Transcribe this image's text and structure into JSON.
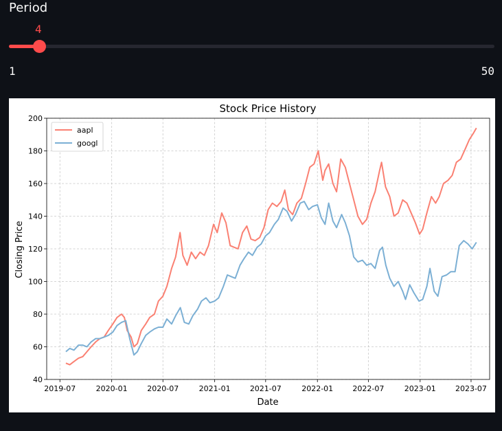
{
  "slider": {
    "label": "Period",
    "value": 4,
    "value_text": "4",
    "min": 1,
    "max": 50,
    "min_text": "1",
    "max_text": "50",
    "accent_color": "#ff4b4b"
  },
  "chart_data": {
    "type": "line",
    "title": "Stock Price History",
    "xlabel": "Date",
    "ylabel": "Closing Price",
    "ylim": [
      40,
      200
    ],
    "yticks": [
      40,
      60,
      80,
      100,
      120,
      140,
      160,
      180,
      200
    ],
    "xticks": [
      "2019-07",
      "2020-01",
      "2020-07",
      "2021-01",
      "2021-07",
      "2022-01",
      "2022-07",
      "2023-01",
      "2023-07"
    ],
    "grid": true,
    "legend": "top-left",
    "series": [
      {
        "name": "aapl",
        "color": "#fa8072",
        "points": [
          [
            "2019-07-22",
            50
          ],
          [
            "2019-08-05",
            49
          ],
          [
            "2019-08-20",
            51
          ],
          [
            "2019-09-05",
            53
          ],
          [
            "2019-09-20",
            54
          ],
          [
            "2019-10-05",
            57
          ],
          [
            "2019-10-20",
            60
          ],
          [
            "2019-11-05",
            63
          ],
          [
            "2019-11-20",
            65
          ],
          [
            "2019-12-05",
            66
          ],
          [
            "2019-12-20",
            70
          ],
          [
            "2020-01-05",
            74
          ],
          [
            "2020-01-20",
            78
          ],
          [
            "2020-02-05",
            80
          ],
          [
            "2020-02-15",
            78
          ],
          [
            "2020-02-25",
            70
          ],
          [
            "2020-03-10",
            66
          ],
          [
            "2020-03-20",
            60
          ],
          [
            "2020-04-01",
            62
          ],
          [
            "2020-04-15",
            70
          ],
          [
            "2020-05-01",
            74
          ],
          [
            "2020-05-15",
            78
          ],
          [
            "2020-06-01",
            80
          ],
          [
            "2020-06-15",
            88
          ],
          [
            "2020-07-01",
            91
          ],
          [
            "2020-07-15",
            97
          ],
          [
            "2020-08-01",
            108
          ],
          [
            "2020-08-15",
            115
          ],
          [
            "2020-08-31",
            130
          ],
          [
            "2020-09-10",
            116
          ],
          [
            "2020-09-25",
            110
          ],
          [
            "2020-10-10",
            118
          ],
          [
            "2020-10-25",
            114
          ],
          [
            "2020-11-10",
            118
          ],
          [
            "2020-11-25",
            116
          ],
          [
            "2020-12-10",
            122
          ],
          [
            "2020-12-28",
            135
          ],
          [
            "2021-01-10",
            130
          ],
          [
            "2021-01-26",
            142
          ],
          [
            "2021-02-10",
            136
          ],
          [
            "2021-02-25",
            122
          ],
          [
            "2021-03-10",
            121
          ],
          [
            "2021-03-25",
            120
          ],
          [
            "2021-04-10",
            130
          ],
          [
            "2021-04-25",
            134
          ],
          [
            "2021-05-10",
            126
          ],
          [
            "2021-05-25",
            125
          ],
          [
            "2021-06-10",
            127
          ],
          [
            "2021-06-25",
            133
          ],
          [
            "2021-07-10",
            144
          ],
          [
            "2021-07-25",
            148
          ],
          [
            "2021-08-10",
            146
          ],
          [
            "2021-08-25",
            149
          ],
          [
            "2021-09-07",
            156
          ],
          [
            "2021-09-20",
            144
          ],
          [
            "2021-10-05",
            141
          ],
          [
            "2021-10-20",
            148
          ],
          [
            "2021-11-05",
            151
          ],
          [
            "2021-11-20",
            160
          ],
          [
            "2021-12-05",
            170
          ],
          [
            "2021-12-20",
            172
          ],
          [
            "2022-01-04",
            180
          ],
          [
            "2022-01-20",
            162
          ],
          [
            "2022-01-28",
            168
          ],
          [
            "2022-02-10",
            172
          ],
          [
            "2022-02-25",
            160
          ],
          [
            "2022-03-10",
            155
          ],
          [
            "2022-03-25",
            175
          ],
          [
            "2022-04-10",
            170
          ],
          [
            "2022-04-25",
            160
          ],
          [
            "2022-05-10",
            150
          ],
          [
            "2022-05-25",
            140
          ],
          [
            "2022-06-10",
            135
          ],
          [
            "2022-06-25",
            138
          ],
          [
            "2022-07-10",
            148
          ],
          [
            "2022-07-25",
            155
          ],
          [
            "2022-08-10",
            168
          ],
          [
            "2022-08-17",
            173
          ],
          [
            "2022-08-31",
            158
          ],
          [
            "2022-09-15",
            152
          ],
          [
            "2022-09-30",
            140
          ],
          [
            "2022-10-15",
            142
          ],
          [
            "2022-10-31",
            150
          ],
          [
            "2022-11-15",
            148
          ],
          [
            "2022-11-30",
            142
          ],
          [
            "2022-12-15",
            136
          ],
          [
            "2022-12-30",
            129
          ],
          [
            "2023-01-10",
            132
          ],
          [
            "2023-01-25",
            142
          ],
          [
            "2023-02-10",
            152
          ],
          [
            "2023-02-25",
            148
          ],
          [
            "2023-03-10",
            152
          ],
          [
            "2023-03-25",
            160
          ],
          [
            "2023-04-10",
            162
          ],
          [
            "2023-04-25",
            165
          ],
          [
            "2023-05-10",
            173
          ],
          [
            "2023-05-25",
            175
          ],
          [
            "2023-06-10",
            181
          ],
          [
            "2023-06-25",
            187
          ],
          [
            "2023-07-10",
            191
          ],
          [
            "2023-07-20",
            194
          ]
        ]
      },
      {
        "name": "googl",
        "color": "#7bafd4",
        "points": [
          [
            "2019-07-22",
            57
          ],
          [
            "2019-08-05",
            59
          ],
          [
            "2019-08-20",
            58
          ],
          [
            "2019-09-05",
            61
          ],
          [
            "2019-09-20",
            61
          ],
          [
            "2019-10-05",
            60
          ],
          [
            "2019-10-20",
            63
          ],
          [
            "2019-11-05",
            65
          ],
          [
            "2019-11-20",
            65
          ],
          [
            "2019-12-05",
            66
          ],
          [
            "2019-12-20",
            67
          ],
          [
            "2020-01-05",
            69
          ],
          [
            "2020-01-20",
            73
          ],
          [
            "2020-02-05",
            75
          ],
          [
            "2020-02-20",
            76
          ],
          [
            "2020-03-05",
            65
          ],
          [
            "2020-03-20",
            55
          ],
          [
            "2020-04-01",
            57
          ],
          [
            "2020-04-15",
            62
          ],
          [
            "2020-05-01",
            67
          ],
          [
            "2020-05-15",
            69
          ],
          [
            "2020-06-01",
            71
          ],
          [
            "2020-06-15",
            72
          ],
          [
            "2020-07-01",
            72
          ],
          [
            "2020-07-15",
            77
          ],
          [
            "2020-08-01",
            74
          ],
          [
            "2020-08-15",
            79
          ],
          [
            "2020-09-01",
            84
          ],
          [
            "2020-09-15",
            75
          ],
          [
            "2020-10-01",
            74
          ],
          [
            "2020-10-15",
            79
          ],
          [
            "2020-11-01",
            83
          ],
          [
            "2020-11-15",
            88
          ],
          [
            "2020-12-01",
            90
          ],
          [
            "2020-12-15",
            87
          ],
          [
            "2021-01-01",
            88
          ],
          [
            "2021-01-15",
            90
          ],
          [
            "2021-02-01",
            97
          ],
          [
            "2021-02-15",
            104
          ],
          [
            "2021-03-01",
            103
          ],
          [
            "2021-03-15",
            102
          ],
          [
            "2021-04-01",
            110
          ],
          [
            "2021-04-15",
            114
          ],
          [
            "2021-05-01",
            118
          ],
          [
            "2021-05-15",
            116
          ],
          [
            "2021-06-01",
            121
          ],
          [
            "2021-06-15",
            123
          ],
          [
            "2021-07-01",
            128
          ],
          [
            "2021-07-15",
            130
          ],
          [
            "2021-08-01",
            135
          ],
          [
            "2021-08-15",
            138
          ],
          [
            "2021-09-01",
            145
          ],
          [
            "2021-09-15",
            143
          ],
          [
            "2021-10-01",
            137
          ],
          [
            "2021-10-15",
            141
          ],
          [
            "2021-11-01",
            148
          ],
          [
            "2021-11-15",
            149
          ],
          [
            "2021-12-01",
            144
          ],
          [
            "2021-12-15",
            146
          ],
          [
            "2022-01-01",
            147
          ],
          [
            "2022-01-15",
            139
          ],
          [
            "2022-01-28",
            135
          ],
          [
            "2022-02-10",
            148
          ],
          [
            "2022-02-25",
            137
          ],
          [
            "2022-03-10",
            133
          ],
          [
            "2022-03-28",
            141
          ],
          [
            "2022-04-10",
            136
          ],
          [
            "2022-04-25",
            128
          ],
          [
            "2022-05-10",
            115
          ],
          [
            "2022-05-25",
            112
          ],
          [
            "2022-06-10",
            113
          ],
          [
            "2022-06-25",
            110
          ],
          [
            "2022-07-10",
            111
          ],
          [
            "2022-07-25",
            108
          ],
          [
            "2022-08-10",
            119
          ],
          [
            "2022-08-20",
            121
          ],
          [
            "2022-09-01",
            110
          ],
          [
            "2022-09-15",
            102
          ],
          [
            "2022-09-30",
            97
          ],
          [
            "2022-10-15",
            100
          ],
          [
            "2022-10-31",
            94
          ],
          [
            "2022-11-10",
            89
          ],
          [
            "2022-11-25",
            98
          ],
          [
            "2022-12-10",
            93
          ],
          [
            "2022-12-28",
            88
          ],
          [
            "2023-01-10",
            89
          ],
          [
            "2023-01-25",
            97
          ],
          [
            "2023-02-05",
            108
          ],
          [
            "2023-02-20",
            94
          ],
          [
            "2023-03-05",
            91
          ],
          [
            "2023-03-20",
            103
          ],
          [
            "2023-04-05",
            104
          ],
          [
            "2023-04-20",
            106
          ],
          [
            "2023-05-05",
            106
          ],
          [
            "2023-05-20",
            122
          ],
          [
            "2023-06-05",
            125
          ],
          [
            "2023-06-20",
            123
          ],
          [
            "2023-07-05",
            120
          ],
          [
            "2023-07-20",
            124
          ]
        ]
      }
    ]
  }
}
